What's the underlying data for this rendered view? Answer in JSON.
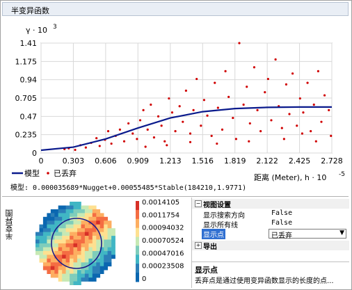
{
  "window": {
    "title": "半变异函数"
  },
  "plot": {
    "y_axis_label": "γ · 10",
    "y_axis_exp": "3",
    "x_axis_label": "距离 (Meter), h · 10",
    "x_axis_exp": "-5",
    "y_ticks": [
      "1.41",
      "1.175",
      "0.94",
      "0.705",
      "0.47",
      "0.235",
      "0"
    ],
    "x_ticks": [
      "0",
      "0.303",
      "0.606",
      "0.909",
      "1.213",
      "1.516",
      "1.819",
      "2.122",
      "2.425",
      "2.728"
    ],
    "legend": {
      "model_label": "模型",
      "discarded_label": "已丢弃"
    },
    "model_text": "模型: 0.000035689*Nugget+0.00055485*Stable(184210,1.9771)"
  },
  "chart_data": {
    "type": "scatter",
    "title": "",
    "xlabel": "距离 (Meter), h · 10^-5",
    "ylabel": "γ · 10^3",
    "xlim": [
      0,
      2.728
    ],
    "ylim": [
      0,
      1.41
    ],
    "series": [
      {
        "name": "已丢弃",
        "points": [
          [
            0.22,
            0.05
          ],
          [
            0.26,
            0.06
          ],
          [
            0.32,
            0.04
          ],
          [
            0.37,
            0.1
          ],
          [
            0.42,
            0.07
          ],
          [
            0.47,
            0.13
          ],
          [
            0.52,
            0.19
          ],
          [
            0.55,
            0.09
          ],
          [
            0.6,
            0.17
          ],
          [
            0.63,
            0.28
          ],
          [
            0.66,
            0.12
          ],
          [
            0.7,
            0.22
          ],
          [
            0.74,
            0.3
          ],
          [
            0.78,
            0.15
          ],
          [
            0.82,
            0.38
          ],
          [
            0.86,
            0.25
          ],
          [
            0.9,
            0.18
          ],
          [
            0.93,
            0.42
          ],
          [
            0.96,
            0.55
          ],
          [
            1.0,
            0.3
          ],
          [
            1.03,
            0.62
          ],
          [
            1.06,
            0.2
          ],
          [
            1.1,
            0.47
          ],
          [
            1.13,
            0.35
          ],
          [
            1.16,
            0.15
          ],
          [
            1.2,
            0.7
          ],
          [
            1.23,
            0.52
          ],
          [
            1.26,
            0.28
          ],
          [
            1.3,
            0.6
          ],
          [
            1.33,
            0.4
          ],
          [
            1.36,
            0.8
          ],
          [
            1.4,
            0.25
          ],
          [
            1.43,
            0.55
          ],
          [
            1.46,
            0.95
          ],
          [
            1.5,
            0.35
          ],
          [
            1.53,
            0.68
          ],
          [
            1.56,
            0.48
          ],
          [
            1.6,
            0.22
          ],
          [
            1.63,
            0.9
          ],
          [
            1.66,
            0.58
          ],
          [
            1.7,
            0.3
          ],
          [
            1.73,
            1.05
          ],
          [
            1.76,
            0.72
          ],
          [
            1.8,
            0.45
          ],
          [
            1.83,
            0.18
          ],
          [
            1.86,
            1.41
          ],
          [
            1.9,
            0.62
          ],
          [
            1.93,
            0.85
          ],
          [
            1.96,
            0.38
          ],
          [
            2.0,
            1.1
          ],
          [
            2.03,
            0.55
          ],
          [
            2.06,
            0.28
          ],
          [
            2.1,
            0.78
          ],
          [
            2.13,
            0.95
          ],
          [
            2.16,
            0.42
          ],
          [
            2.2,
            1.2
          ],
          [
            2.23,
            0.6
          ],
          [
            2.26,
            0.32
          ],
          [
            2.3,
            0.88
          ],
          [
            2.33,
            0.5
          ],
          [
            2.36,
            1.02
          ],
          [
            2.4,
            0.35
          ],
          [
            2.43,
            0.7
          ],
          [
            2.46,
            0.52
          ],
          [
            2.5,
            0.9
          ],
          [
            2.53,
            0.28
          ],
          [
            2.56,
            0.62
          ],
          [
            2.6,
            1.05
          ],
          [
            2.63,
            0.4
          ],
          [
            2.66,
            0.74
          ],
          [
            2.7,
            0.55
          ],
          [
            2.72,
            0.22
          ],
          [
            1.18,
            0.1
          ],
          [
            1.4,
            0.14
          ],
          [
            1.65,
            0.12
          ],
          [
            1.95,
            0.15
          ],
          [
            2.28,
            0.18
          ],
          [
            2.58,
            0.15
          ],
          [
            0.98,
            0.08
          ],
          [
            2.45,
            0.25
          ]
        ]
      },
      {
        "name": "模型",
        "points": [
          [
            0,
            0.036
          ],
          [
            0.303,
            0.075
          ],
          [
            0.606,
            0.18
          ],
          [
            0.909,
            0.32
          ],
          [
            1.213,
            0.45
          ],
          [
            1.516,
            0.53
          ],
          [
            1.819,
            0.57
          ],
          [
            2.122,
            0.585
          ],
          [
            2.425,
            0.59
          ],
          [
            2.728,
            0.59
          ]
        ]
      }
    ]
  },
  "colorbar": {
    "labels": [
      "0.0014105",
      "0.0011754",
      "0.00094032",
      "0.00070524",
      "0.00047016",
      "0.00023508",
      "0"
    ],
    "colors": [
      "#d73027",
      "#f46d43",
      "#fdae61",
      "#fee090",
      "#c7e9b4",
      "#7fcdbb",
      "#41b6c4",
      "#2c7fb8",
      "#0b67b0"
    ]
  },
  "side_title": "半变异图",
  "properties": {
    "view_section": "视图设置",
    "rows": [
      {
        "key": "显示搜索方向",
        "value": "False"
      },
      {
        "key": "显示所有线",
        "value": "False"
      },
      {
        "key": "显示点",
        "value": "已丢弃"
      }
    ],
    "export_section": "导出",
    "description_title": "显示点",
    "description_body": "丢弃点是通过使用变异函数显示的长度的点..."
  }
}
